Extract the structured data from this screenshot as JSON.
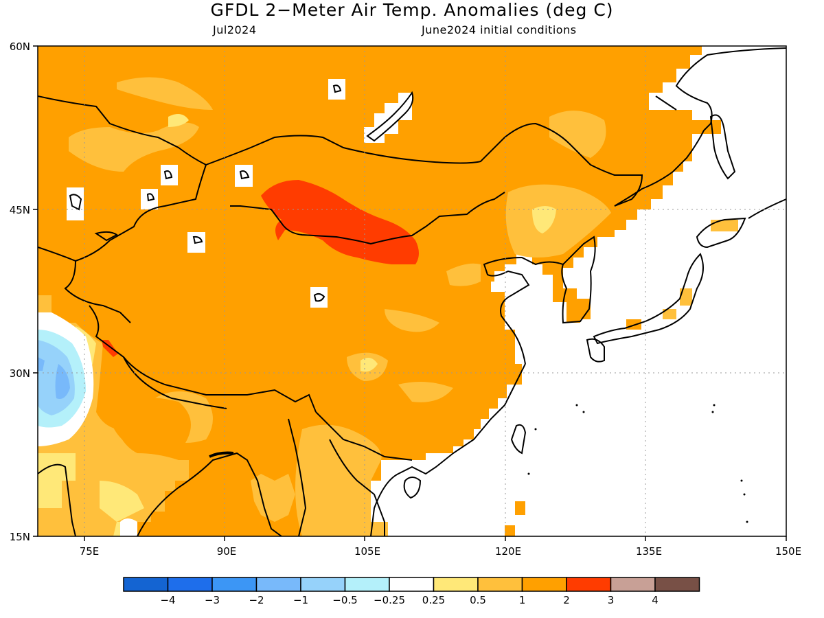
{
  "map": {
    "title": "GFDL 2−Meter Air Temp. Anomalies (deg C)",
    "subtitle_left": "Jul2024",
    "subtitle_right": "June2024 initial conditions",
    "lat_ticks": [
      "60N",
      "45N",
      "30N",
      "15N"
    ],
    "lon_ticks": [
      "75E",
      "90E",
      "105E",
      "120E",
      "135E",
      "150E"
    ],
    "extent": {
      "lon": [
        70,
        150
      ],
      "lat": [
        15,
        60
      ]
    },
    "colorbar": {
      "colors": [
        "#1464d2",
        "#1e6eeb",
        "#3c96f5",
        "#78b9fa",
        "#96d2fa",
        "#b4f0fa",
        "#ffffff",
        "#ffe878",
        "#ffc03c",
        "#ffa000",
        "#ff3c00",
        "#c8a096",
        "#785046"
      ],
      "labels": [
        "−4",
        "−3",
        "−2",
        "−1",
        "−0.5",
        "−0.25",
        "0.25",
        "0.5",
        "1",
        "2",
        "3",
        "4"
      ]
    }
  }
}
